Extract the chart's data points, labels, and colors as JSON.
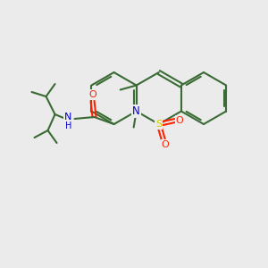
{
  "background_color": "#ebebeb",
  "bond_color": "#3a6b35",
  "atom_colors": {
    "O": "#ff2200",
    "N": "#0000cc",
    "S": "#cccc00",
    "C": "#3a6b35"
  },
  "figsize": [
    3.0,
    3.0
  ],
  "dpi": 100
}
